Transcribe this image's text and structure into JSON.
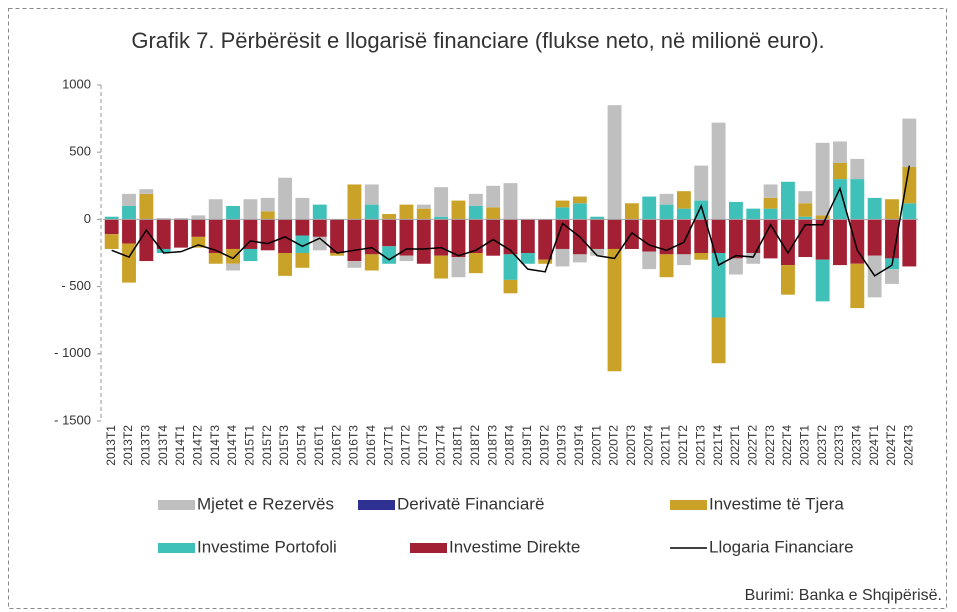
{
  "chart_data": {
    "type": "bar",
    "title": "Grafik 7. Përbërësit e llogarisë financiare (flukse neto, në milionë euro).",
    "source": "Burimi: Banka e Shqipërisë.",
    "categories": [
      "2013T1",
      "2013T2",
      "2013T3",
      "2013T4",
      "2014T1",
      "2014T2",
      "2014T3",
      "2014T4",
      "2015T1",
      "2015T2",
      "2015T3",
      "2015T4",
      "2016T1",
      "2016T2",
      "2016T3",
      "2016T4",
      "2017T1",
      "2017T2",
      "2017T3",
      "2017T4",
      "2018T1",
      "2018T2",
      "2018T3",
      "2018T4",
      "2019T1",
      "2019T2",
      "2019T3",
      "2019T4",
      "2020T1",
      "2020T2",
      "2020T3",
      "2020T4",
      "2021T1",
      "2021T2",
      "2021T3",
      "2021T4",
      "2022T1",
      "2022T2",
      "2022T3",
      "2022T4",
      "2023T1",
      "2023T2",
      "2023T3",
      "2023T4",
      "2024T1",
      "2024T2",
      "2024T3"
    ],
    "series": [
      {
        "name": "Mjetet e Rezervës",
        "type": "bar",
        "color": "#bfbfbf",
        "values": [
          0,
          90,
          35,
          10,
          10,
          30,
          150,
          -50,
          150,
          100,
          310,
          160,
          -100,
          0,
          -50,
          150,
          0,
          -40,
          30,
          220,
          -150,
          90,
          160,
          270,
          0,
          0,
          -130,
          -60,
          -50,
          850,
          0,
          -130,
          80,
          -80,
          260,
          720,
          -120,
          -80,
          100,
          0,
          90,
          540,
          160,
          150,
          -310,
          -110,
          360
        ]
      },
      {
        "name": "Derivatë Financiarë",
        "type": "bar",
        "color": "#2e3192",
        "values": [
          0,
          0,
          0,
          0,
          0,
          0,
          0,
          0,
          0,
          0,
          0,
          0,
          0,
          0,
          0,
          0,
          0,
          0,
          0,
          0,
          0,
          0,
          0,
          0,
          0,
          0,
          0,
          0,
          0,
          0,
          0,
          0,
          0,
          0,
          0,
          0,
          0,
          0,
          0,
          0,
          0,
          0,
          0,
          0,
          0,
          0,
          0
        ]
      },
      {
        "name": "Investime të Tjera",
        "type": "bar",
        "color": "#c9a227",
        "values": [
          -110,
          -290,
          190,
          0,
          0,
          -80,
          -80,
          -110,
          0,
          60,
          -170,
          -110,
          0,
          -20,
          260,
          -120,
          40,
          110,
          80,
          -170,
          140,
          -150,
          90,
          -100,
          0,
          -30,
          50,
          50,
          0,
          -910,
          120,
          0,
          -170,
          130,
          -50,
          -340,
          0,
          0,
          80,
          -220,
          100,
          30,
          120,
          -330,
          0,
          150,
          270
        ]
      },
      {
        "name": "Investime Portofoli",
        "type": "bar",
        "color": "#3fc1b9",
        "values": [
          20,
          100,
          0,
          -30,
          0,
          0,
          0,
          100,
          -90,
          0,
          0,
          -130,
          110,
          0,
          0,
          110,
          -130,
          0,
          0,
          20,
          0,
          100,
          0,
          -190,
          -80,
          0,
          90,
          120,
          20,
          0,
          0,
          170,
          110,
          80,
          140,
          -480,
          130,
          80,
          80,
          280,
          20,
          -310,
          300,
          300,
          160,
          -80,
          120
        ]
      },
      {
        "name": "Investime Direkte",
        "type": "bar",
        "color": "#a31f34",
        "values": [
          -110,
          -180,
          -310,
          -220,
          -210,
          -130,
          -250,
          -220,
          -220,
          -230,
          -250,
          -120,
          -130,
          -250,
          -310,
          -260,
          -200,
          -270,
          -330,
          -270,
          -280,
          -250,
          -270,
          -260,
          -250,
          -300,
          -220,
          -260,
          -220,
          -220,
          -220,
          -240,
          -260,
          -260,
          -250,
          -250,
          -290,
          -250,
          -290,
          -340,
          -280,
          -300,
          -340,
          -330,
          -270,
          -290,
          -350
        ]
      },
      {
        "name": "Llogaria Financiare",
        "type": "line",
        "color": "#000000",
        "values": [
          -230,
          -280,
          -80,
          -250,
          -240,
          -190,
          -230,
          -290,
          -160,
          -180,
          -130,
          -200,
          -140,
          -250,
          -230,
          -210,
          -300,
          -220,
          -220,
          -210,
          -270,
          -230,
          -150,
          -230,
          -370,
          -390,
          -30,
          -130,
          -270,
          -290,
          -100,
          -190,
          -230,
          -170,
          100,
          -340,
          -270,
          -280,
          -40,
          -250,
          -40,
          -40,
          230,
          -230,
          -420,
          -340,
          400
        ]
      }
    ],
    "ylim": [
      -1500,
      1000
    ],
    "yticks": [
      {
        "value": -1500,
        "label": "- 1500"
      },
      {
        "value": -1000,
        "label": "- 1000"
      },
      {
        "value": -500,
        "label": "- 500"
      },
      0,
      500,
      1000
    ]
  }
}
